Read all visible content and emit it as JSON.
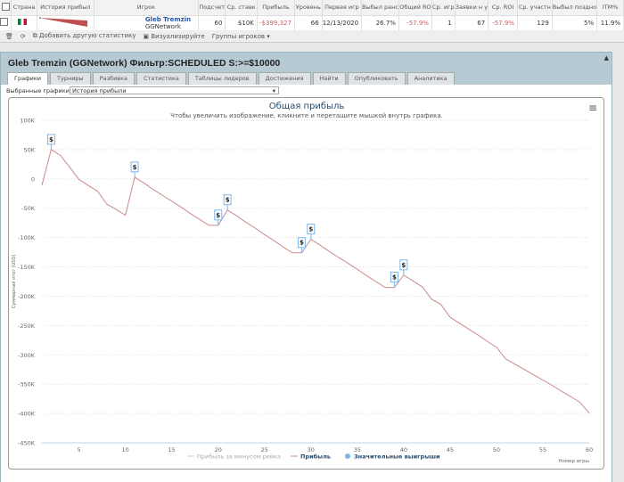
{
  "grid": {
    "headers": [
      "Страна",
      "История прибыл",
      "Игрок",
      "Подсчет",
      "Ср. ставк",
      "Прибыль",
      "Уровень",
      "Первая игр",
      "Выбыл ранс",
      "Общий RO",
      "Ср. игр",
      "Заявки н у",
      "Ср. ROI",
      "Ср. участн",
      "Выбыл поздно",
      "ITM%"
    ],
    "row": {
      "player_name": "Gleb Tremzin",
      "network": "GGNetwork",
      "count": "60",
      "avg_stake": "$10K",
      "profit": "-$399,327",
      "level": "66",
      "first_game": "12/13/2020",
      "early_out": "26.7%",
      "total_roi": "-57.9%",
      "avg_games": "1",
      "entries": "67",
      "avg_roi": "-57.9%",
      "avg_field": "129",
      "late_out": "5%",
      "itm": "11.9%"
    },
    "toolbar": {
      "add_stat": "Добавить другую статистику",
      "visualize": "Визуализируйте",
      "player_groups": "Группы игроков ▾"
    }
  },
  "window": {
    "title": "Gleb Tremzin (GGNetwork) Фильтр:SCHEDULED S:>=$10000",
    "tabs": [
      "Графики",
      "Турниры",
      "Разбивка",
      "Статистика",
      "Таблицы лидеров",
      "Достижения",
      "Найти",
      "Опубликовать",
      "Аналитика"
    ],
    "active_tab": "Графики",
    "selected_charts_label": "Выбранные графики:",
    "selected_chart": "История прибыли"
  },
  "chart_data": {
    "type": "line",
    "title": "Общая прибыль",
    "subtitle": "Чтобы увеличить изображение, кликните и перетащите мышкой внутрь графика.",
    "xlabel": "Номер игры",
    "ylabel": "Суммарный итог (USD)",
    "xlim": [
      1,
      60
    ],
    "ylim": [
      -450000,
      100000
    ],
    "xticks": [
      5,
      10,
      15,
      20,
      25,
      30,
      35,
      40,
      45,
      50,
      55,
      60
    ],
    "yticks": [
      100000,
      50000,
      0,
      -50000,
      -100000,
      -150000,
      -200000,
      -250000,
      -300000,
      -350000,
      -400000,
      -450000
    ],
    "ytick_labels": [
      "100K",
      "50K",
      "0",
      "-50K",
      "-100K",
      "-150K",
      "-200K",
      "-250K",
      "-300K",
      "-350K",
      "-400K",
      "-450K"
    ],
    "grid": true,
    "legend_placement": "bottom",
    "legend": [
      "Прибыль за минусом рейка",
      "Прибыль",
      "Значительные выигрыши"
    ],
    "series": [
      {
        "name": "Прибыль",
        "color": "#c98b8b",
        "x": [
          1,
          2,
          3,
          4,
          5,
          6,
          7,
          8,
          9,
          10,
          11,
          12,
          13,
          14,
          15,
          16,
          17,
          18,
          19,
          20,
          21,
          22,
          23,
          24,
          25,
          26,
          27,
          28,
          29,
          30,
          31,
          32,
          33,
          34,
          35,
          36,
          37,
          38,
          39,
          40,
          41,
          42,
          43,
          44,
          45,
          46,
          47,
          48,
          49,
          50,
          51,
          52,
          53,
          54,
          55,
          56,
          57,
          58,
          59,
          60
        ],
        "y": [
          -11000,
          50000,
          40000,
          20000,
          -1000,
          -11000,
          -21000,
          -43000,
          -52000,
          -62000,
          3000,
          -7000,
          -18000,
          -28000,
          -38000,
          -48000,
          -59000,
          -69000,
          -79000,
          -79000,
          -53000,
          -63000,
          -74000,
          -84000,
          -95000,
          -105000,
          -116000,
          -126000,
          -126000,
          -103000,
          -113000,
          -124000,
          -134000,
          -144000,
          -154000,
          -165000,
          -175000,
          -185000,
          -185000,
          -164000,
          -174000,
          -184000,
          -205000,
          -214000,
          -236000,
          -246000,
          -256000,
          -266000,
          -277000,
          -287000,
          -307000,
          -316000,
          -325000,
          -334000,
          -343000,
          -352000,
          -362000,
          -371000,
          -381000,
          -399327
        ]
      }
    ],
    "big_wins": {
      "marker": "$",
      "color": "#7cb5ec",
      "x": [
        2,
        11,
        20,
        21,
        29,
        30,
        39,
        40
      ]
    },
    "menu_icon": "hamburger-icon"
  }
}
